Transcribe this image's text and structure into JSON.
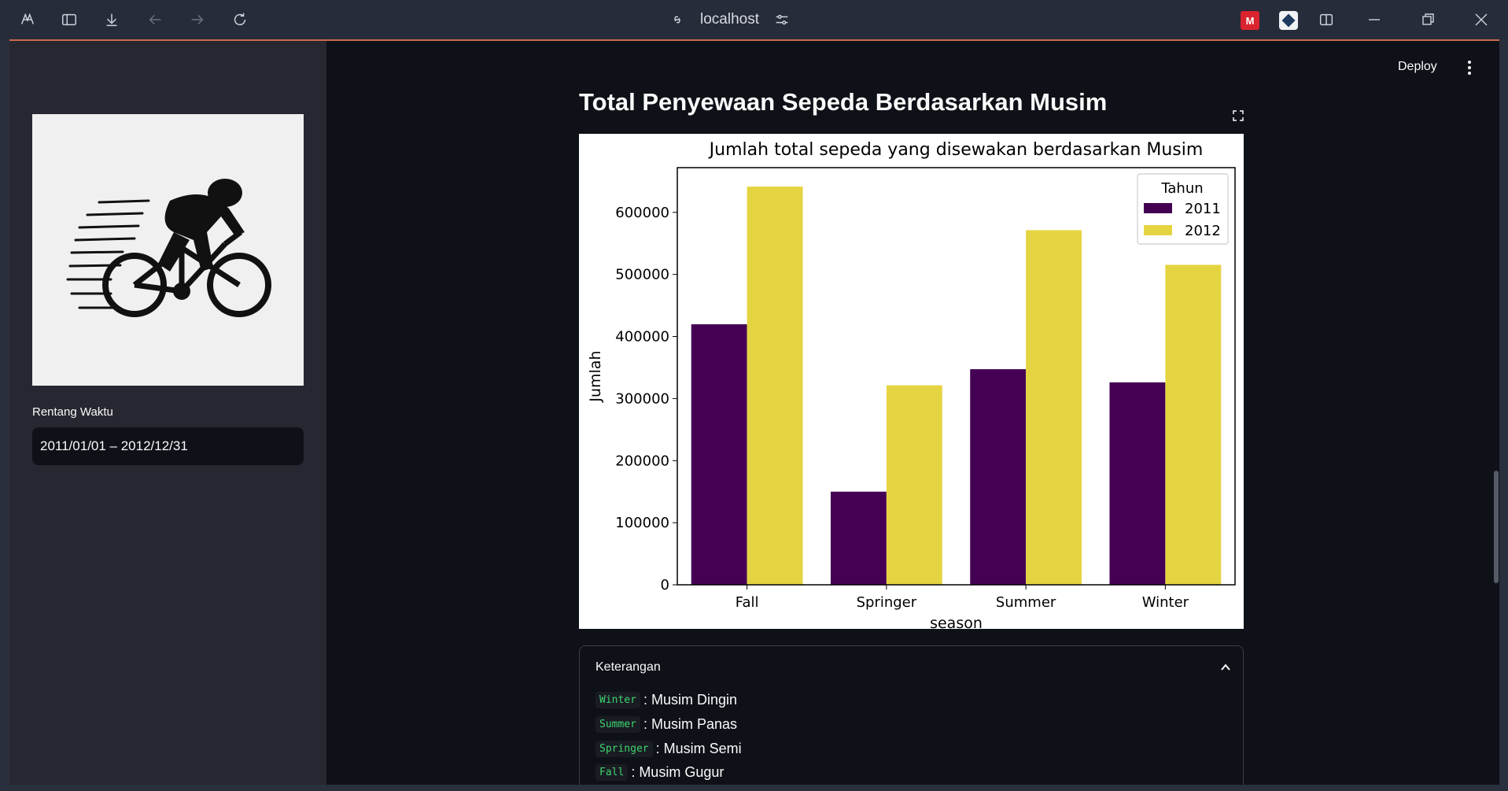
{
  "browser": {
    "url": "localhost",
    "extension_red_label": "M"
  },
  "sidebar": {
    "date_label": "Rentang Waktu",
    "date_value": "2011/01/01 – 2012/12/31"
  },
  "header": {
    "deploy_label": "Deploy"
  },
  "main": {
    "title": "Total Penyewaan Sepeda Berdasarkan Musim",
    "expander_title": "Keterangan",
    "legend_items": [
      {
        "code": "Winter",
        "text": ": Musim Dingin"
      },
      {
        "code": "Summer",
        "text": ": Musim Panas"
      },
      {
        "code": "Springer",
        "text": ": Musim Semi"
      },
      {
        "code": "Fall",
        "text": ": Musim Gugur"
      }
    ]
  },
  "chart_data": {
    "type": "bar",
    "title": "Jumlah total sepeda yang disewakan berdasarkan Musim",
    "xlabel": "season",
    "ylabel": "Jumlah",
    "categories": [
      "Fall",
      "Springer",
      "Summer",
      "Winter"
    ],
    "series": [
      {
        "name": "2011",
        "color": "#440154",
        "values": [
          419650,
          150000,
          347316,
          326137
        ]
      },
      {
        "name": "2012",
        "color": "#e5d442",
        "values": [
          641479,
          321348,
          571273,
          515476
        ]
      }
    ],
    "ylim": [
      0,
      672000
    ],
    "yticks": [
      0,
      100000,
      200000,
      300000,
      400000,
      500000,
      600000
    ],
    "legend_title": "Tahun",
    "legend_position": "top-right",
    "grid": false
  }
}
